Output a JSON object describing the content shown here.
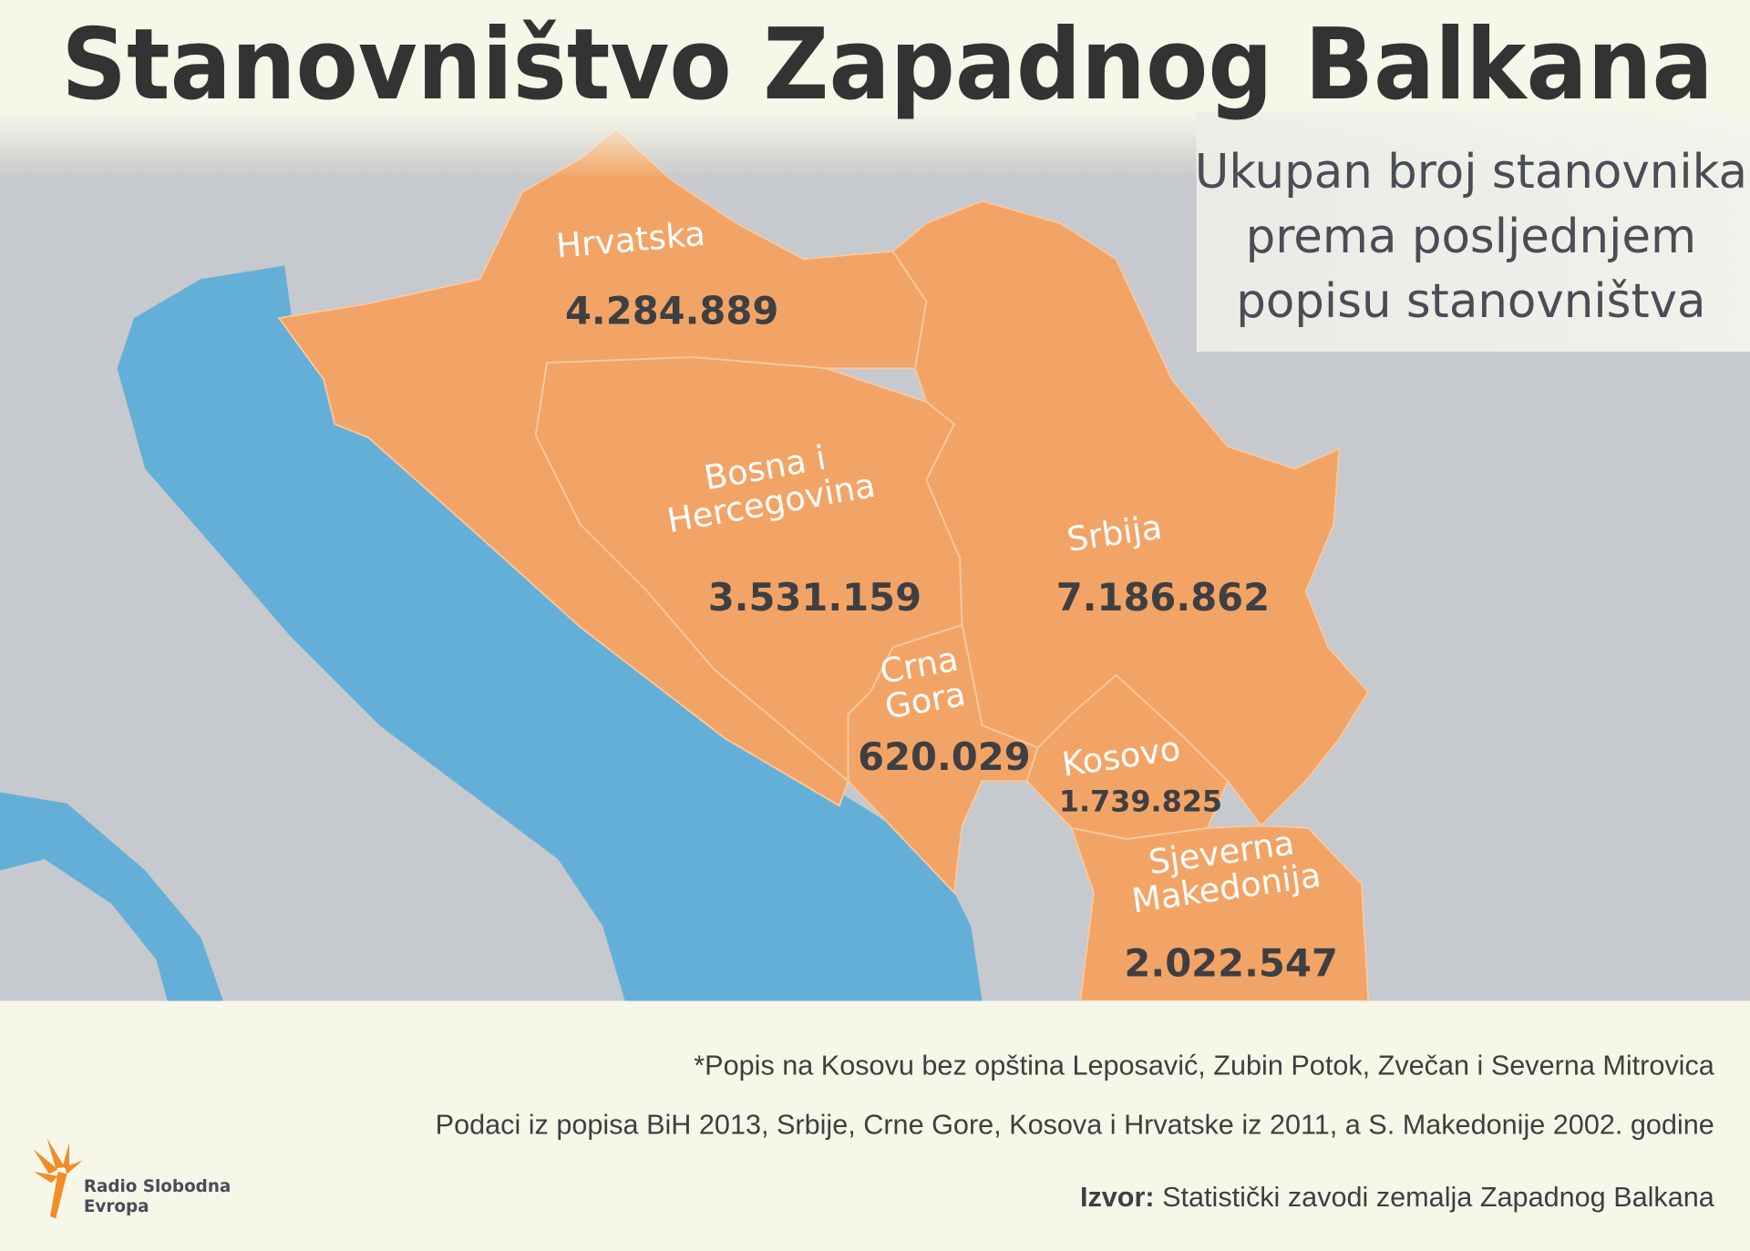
{
  "title": "Stanovništvo Zapadnog Balkana",
  "subtitle": [
    "Ukupan broj stanovnika",
    "prema posljednjem",
    "popisu stanovništva"
  ],
  "regions": [
    {
      "name": [
        "Hrvatska"
      ],
      "population": "4.284.889"
    },
    {
      "name": [
        "Bosna i",
        "Hercegovina"
      ],
      "population": "3.531.159"
    },
    {
      "name": [
        "Srbija"
      ],
      "population": "7.186.862"
    },
    {
      "name": [
        "Crna",
        "Gora"
      ],
      "population": "620.029"
    },
    {
      "name": [
        "Kosovo"
      ],
      "population": "1.739.825"
    },
    {
      "name": [
        "Sjeverna",
        "Makedonija"
      ],
      "population": "2.022.547"
    }
  ],
  "notes": [
    "*Popis na Kosovu bez opština Leposavić, Zubin Potok, Zvečan i Severna Mitrovica",
    "Podaci iz popisa BiH 2013, Srbije, Crne Gore, Kosova i Hrvatske iz 2011, a S. Makedonije 2002. godine"
  ],
  "source": {
    "label": "Izvor:",
    "text": "Statistički zavodi zemalja Zapadnog Balkana"
  },
  "logo": [
    "Radio Slobodna",
    "Evropa"
  ]
}
